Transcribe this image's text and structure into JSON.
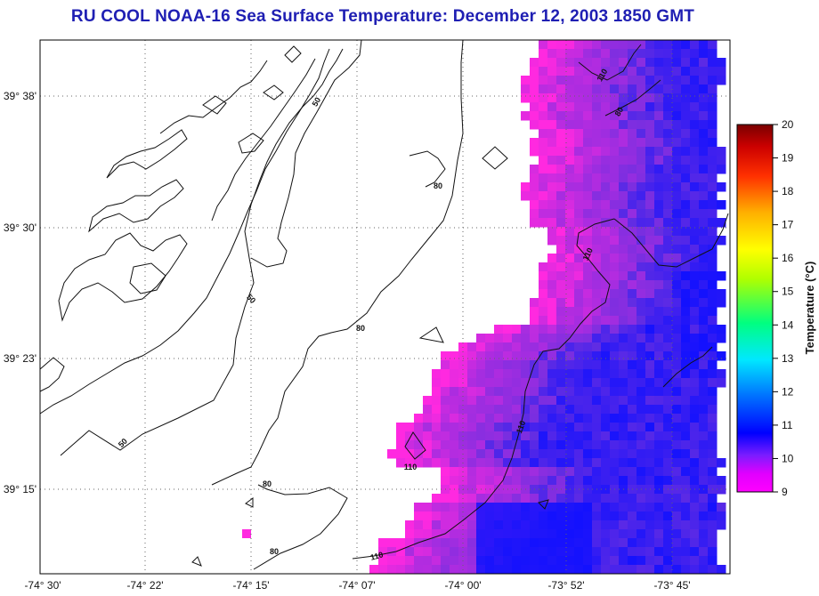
{
  "title": "RU COOL  NOAA-16  Sea Surface Temperature:  December 12, 2003 1850 GMT",
  "lat_ticks": [
    "39° 38'",
    "39° 30'",
    "39° 23'",
    "39° 15'"
  ],
  "lon_ticks": [
    "-74° 30'",
    "-74° 22'",
    "-74° 15'",
    "-74° 07'",
    "-74° 00'",
    "-73° 52'",
    "-73° 45'"
  ],
  "colorbar": {
    "label": "Temperature (°C)",
    "min": 9,
    "max": 20,
    "ticks": [
      "20",
      "19",
      "18",
      "17",
      "16",
      "15",
      "14",
      "13",
      "12",
      "11",
      "10",
      "9"
    ]
  },
  "contours": {
    "depth_labels": [
      "50",
      "50",
      "50",
      "80",
      "80",
      "80",
      "80",
      "110",
      "110",
      "110",
      "110",
      "110",
      "80"
    ]
  },
  "colors": {
    "title": "#1f1fb3",
    "land_and_cloud": "#ffffff",
    "sst_warm": "#ff29e0",
    "sst_mid": "#6a2fe0",
    "sst_cold": "#1010ff"
  }
}
